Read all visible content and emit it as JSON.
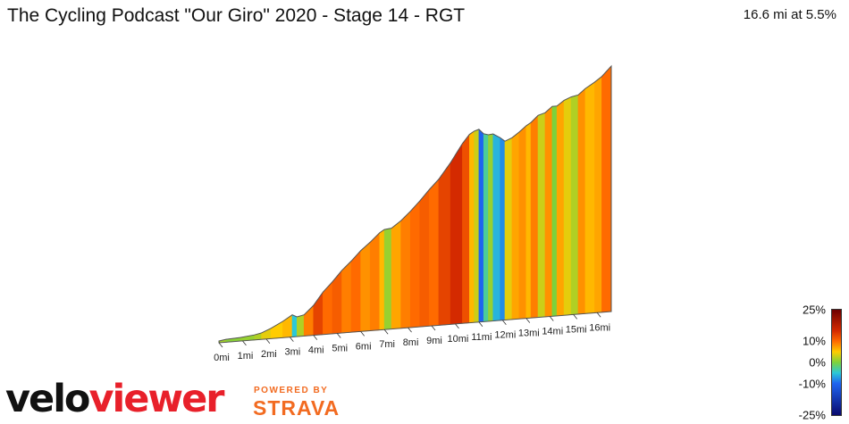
{
  "header": {
    "title": "The Cycling Podcast \"Our Giro\" 2020 - Stage 14 - RGT",
    "summary": "16.6 mi at 5.5%"
  },
  "branding": {
    "logo_part1": "velo",
    "logo_part2": "viewer",
    "powered_by": "POWERED BY",
    "partner": "STRAVA",
    "colors": {
      "velo": "#111111",
      "viewer": "#e8202a",
      "strava": "#f26b21"
    }
  },
  "legend": {
    "labels": [
      "25%",
      "10%",
      "0%",
      "-10%",
      "-25%"
    ],
    "stops": [
      {
        "grade": 25,
        "color": "#6e0000"
      },
      {
        "grade": 15,
        "color": "#d42a00"
      },
      {
        "grade": 10,
        "color": "#ff6a00"
      },
      {
        "grade": 5,
        "color": "#ffcc00"
      },
      {
        "grade": 0,
        "color": "#7cd23c"
      },
      {
        "grade": -5,
        "color": "#2bc8d8"
      },
      {
        "grade": -10,
        "color": "#1e64f0"
      },
      {
        "grade": -25,
        "color": "#0a0a6e"
      }
    ]
  },
  "chart_data": {
    "type": "area",
    "subtype": "3d-elevation-profile",
    "x_unit": "mi",
    "x_tick_labels": [
      "0mi",
      "1mi",
      "2mi",
      "3mi",
      "4mi",
      "5mi",
      "6mi",
      "7mi",
      "8mi",
      "9mi",
      "10mi",
      "11mi",
      "12mi",
      "13mi",
      "14mi",
      "15mi",
      "16mi"
    ],
    "distance_mi": 16.6,
    "average_grade_pct": 5.5,
    "color_scale_range_pct": [
      -25,
      25
    ],
    "segments": [
      {
        "start": 0.0,
        "end": 0.3,
        "grade": 1.5
      },
      {
        "start": 0.3,
        "end": 0.9,
        "grade": 0.5
      },
      {
        "start": 0.9,
        "end": 1.5,
        "grade": 1
      },
      {
        "start": 1.5,
        "end": 1.8,
        "grade": 2
      },
      {
        "start": 1.8,
        "end": 2.2,
        "grade": 4
      },
      {
        "start": 2.2,
        "end": 2.7,
        "grade": 5
      },
      {
        "start": 2.7,
        "end": 3.1,
        "grade": 6
      },
      {
        "start": 3.1,
        "end": 3.3,
        "grade": -5
      },
      {
        "start": 3.3,
        "end": 3.6,
        "grade": 2
      },
      {
        "start": 3.6,
        "end": 4.0,
        "grade": 9
      },
      {
        "start": 4.0,
        "end": 4.4,
        "grade": 13
      },
      {
        "start": 4.4,
        "end": 4.8,
        "grade": 10
      },
      {
        "start": 4.8,
        "end": 5.2,
        "grade": 11
      },
      {
        "start": 5.2,
        "end": 5.6,
        "grade": 9
      },
      {
        "start": 5.6,
        "end": 6.0,
        "grade": 10
      },
      {
        "start": 6.0,
        "end": 6.4,
        "grade": 8
      },
      {
        "start": 6.4,
        "end": 6.8,
        "grade": 9
      },
      {
        "start": 6.8,
        "end": 7.0,
        "grade": 6
      },
      {
        "start": 7.0,
        "end": 7.3,
        "grade": 1
      },
      {
        "start": 7.3,
        "end": 7.7,
        "grade": 7
      },
      {
        "start": 7.7,
        "end": 8.1,
        "grade": 9
      },
      {
        "start": 8.1,
        "end": 8.5,
        "grade": 10
      },
      {
        "start": 8.5,
        "end": 8.9,
        "grade": 11
      },
      {
        "start": 8.9,
        "end": 9.3,
        "grade": 10
      },
      {
        "start": 9.3,
        "end": 9.8,
        "grade": 13
      },
      {
        "start": 9.8,
        "end": 10.3,
        "grade": 15
      },
      {
        "start": 10.3,
        "end": 10.6,
        "grade": 12
      },
      {
        "start": 10.6,
        "end": 10.8,
        "grade": 6
      },
      {
        "start": 10.8,
        "end": 11.0,
        "grade": 3
      },
      {
        "start": 11.0,
        "end": 11.2,
        "grade": -10
      },
      {
        "start": 11.2,
        "end": 11.4,
        "grade": -3
      },
      {
        "start": 11.4,
        "end": 11.6,
        "grade": 1
      },
      {
        "start": 11.6,
        "end": 11.9,
        "grade": -6
      },
      {
        "start": 11.9,
        "end": 12.1,
        "grade": -8
      },
      {
        "start": 12.1,
        "end": 12.4,
        "grade": 4
      },
      {
        "start": 12.4,
        "end": 12.7,
        "grade": 7
      },
      {
        "start": 12.7,
        "end": 13.0,
        "grade": 8
      },
      {
        "start": 13.0,
        "end": 13.2,
        "grade": 6
      },
      {
        "start": 13.2,
        "end": 13.5,
        "grade": 9
      },
      {
        "start": 13.5,
        "end": 13.8,
        "grade": 3
      },
      {
        "start": 13.8,
        "end": 14.1,
        "grade": 8
      },
      {
        "start": 14.1,
        "end": 14.3,
        "grade": 0
      },
      {
        "start": 14.3,
        "end": 14.6,
        "grade": 7
      },
      {
        "start": 14.6,
        "end": 14.9,
        "grade": 4
      },
      {
        "start": 14.9,
        "end": 15.2,
        "grade": 2
      },
      {
        "start": 15.2,
        "end": 15.5,
        "grade": 8
      },
      {
        "start": 15.5,
        "end": 15.9,
        "grade": 6
      },
      {
        "start": 15.9,
        "end": 16.2,
        "grade": 7
      },
      {
        "start": 16.2,
        "end": 16.6,
        "grade": 10
      }
    ]
  }
}
